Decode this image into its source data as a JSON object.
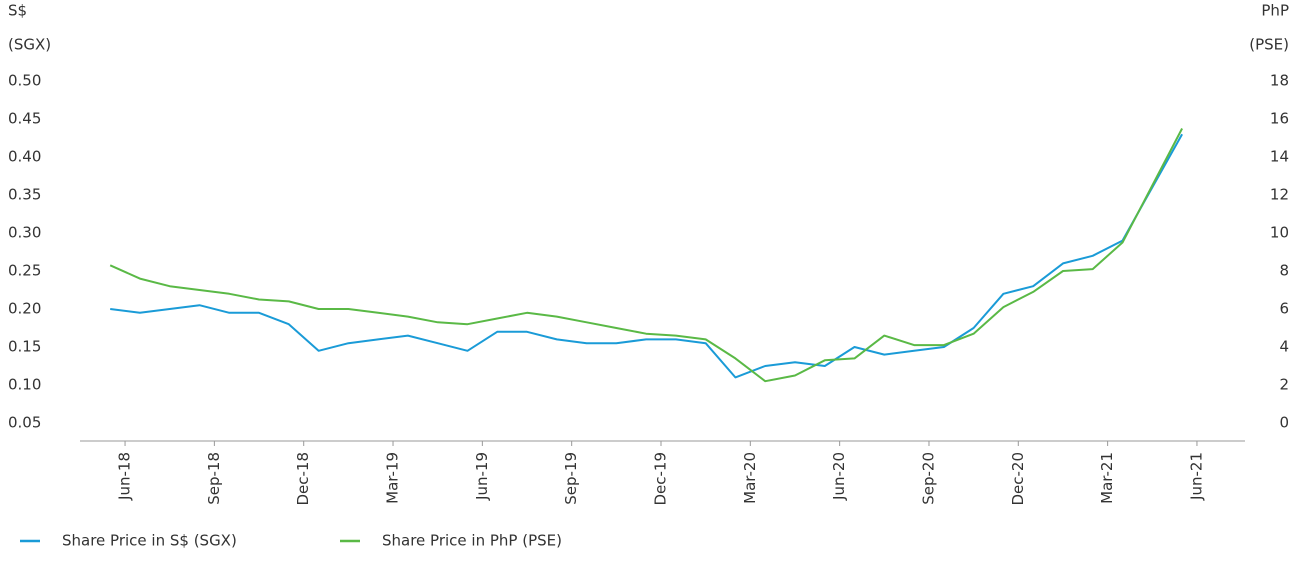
{
  "chart_data": {
    "type": "line",
    "ylabel": [
      "S$",
      "(SGX)"
    ],
    "y2label": [
      "PhP",
      "(PSE)"
    ],
    "x": [
      "2018-05",
      "2018-06",
      "2018-07",
      "2018-08",
      "2018-09",
      "2018-10",
      "2018-11",
      "2018-12",
      "2019-01",
      "2019-02",
      "2019-03",
      "2019-04",
      "2019-05",
      "2019-06",
      "2019-07",
      "2019-08",
      "2019-09",
      "2019-10",
      "2019-11",
      "2019-12",
      "2020-01",
      "2020-02",
      "2020-03",
      "2020-04",
      "2020-05",
      "2020-06",
      "2020-07",
      "2020-08",
      "2020-09",
      "2020-10",
      "2020-11",
      "2020-12",
      "2021-01",
      "2021-02",
      "2021-03",
      "2021-04",
      "2021-05"
    ],
    "series": [
      {
        "name": "Share Price in S$ (SGX)",
        "color": "#1a9bd7",
        "axis": "y",
        "values": [
          0.2,
          0.195,
          0.2,
          0.205,
          0.195,
          0.195,
          0.18,
          0.145,
          0.155,
          0.16,
          0.165,
          0.155,
          0.145,
          0.17,
          0.17,
          0.16,
          0.155,
          0.155,
          0.16,
          0.16,
          0.155,
          0.11,
          0.125,
          0.13,
          0.125,
          0.15,
          0.14,
          0.145,
          0.15,
          0.175,
          0.22,
          0.23,
          0.26,
          0.27,
          0.29,
          0.36,
          0.43
        ]
      },
      {
        "name": "Share Price in PhP (PSE)",
        "color": "#5ab946",
        "axis": "y2",
        "values": [
          8.3,
          7.6,
          7.2,
          7.0,
          6.8,
          6.5,
          6.4,
          6.0,
          6.0,
          5.8,
          5.6,
          5.3,
          5.2,
          5.5,
          5.8,
          5.6,
          5.3,
          5.0,
          4.7,
          4.6,
          4.4,
          3.4,
          2.2,
          2.5,
          3.3,
          3.4,
          4.6,
          4.1,
          4.1,
          4.7,
          6.1,
          6.9,
          8.0,
          8.1,
          9.5,
          12.5,
          15.5
        ]
      }
    ],
    "xlim": [
      "2018-04",
      "2021-08"
    ],
    "xticks": [
      {
        "value": "2018-06",
        "label": "Jun-18"
      },
      {
        "value": "2018-09",
        "label": "Sep-18"
      },
      {
        "value": "2018-12",
        "label": "Dec-18"
      },
      {
        "value": "2019-03",
        "label": "Mar-19"
      },
      {
        "value": "2019-06",
        "label": "Jun-19"
      },
      {
        "value": "2019-09",
        "label": "Sep-19"
      },
      {
        "value": "2019-12",
        "label": "Dec-19"
      },
      {
        "value": "2020-03",
        "label": "Mar-20"
      },
      {
        "value": "2020-06",
        "label": "Jun-20"
      },
      {
        "value": "2020-09",
        "label": "Sep-20"
      },
      {
        "value": "2020-12",
        "label": "Dec-20"
      },
      {
        "value": "2021-03",
        "label": "Mar-21"
      },
      {
        "value": "2021-06",
        "label": "Jun-21"
      }
    ],
    "ylim": [
      0.05,
      0.5
    ],
    "yticks": [
      0.05,
      {
        "value": 0.1,
        "label": "0.10"
      },
      0.15,
      {
        "value": 0.2,
        "label": "0.20"
      },
      0.25,
      {
        "value": 0.3,
        "label": "0.30"
      },
      0.35,
      {
        "value": 0.4,
        "label": "0.40"
      },
      0.45,
      {
        "value": 0.5,
        "label": "0.50"
      }
    ],
    "y2lim": [
      0,
      18
    ],
    "y2ticks": [
      0,
      2,
      4,
      6,
      8,
      10,
      12,
      14,
      16,
      18
    ],
    "legend": "bottom-left"
  }
}
